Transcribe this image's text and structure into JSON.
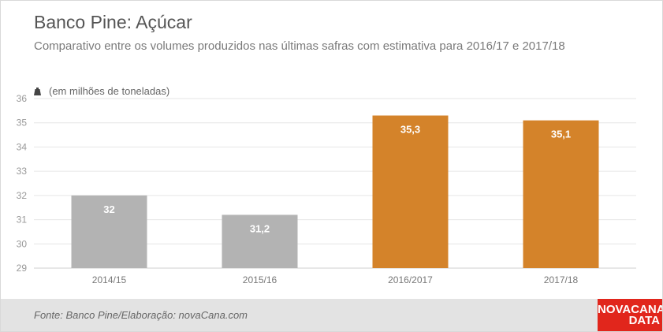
{
  "title": "Banco Pine: Açúcar",
  "subtitle": "Comparativo entre os volumes produzidos nas últimas safras com estimativa para 2016/17 e 2017/18",
  "unit_label": "(em milhões de toneladas)",
  "unit_icon": "weight-icon",
  "source": "Fonte: Banco Pine/Elaboração: novaCana.com",
  "logo": {
    "line1": "NOVACANA",
    "line2": "DATA"
  },
  "colors": {
    "actual": "#b3b3b3",
    "estimate": "#d4832a",
    "grid": "#e6e6e6",
    "logo": "#e1261c"
  },
  "chart_data": {
    "type": "bar",
    "categories": [
      "2014/15",
      "2015/16",
      "2016/2017",
      "2017/18"
    ],
    "values": [
      32,
      31.2,
      35.3,
      35.1
    ],
    "value_labels": [
      "32",
      "31,2",
      "35,3",
      "35,1"
    ],
    "bar_colors": [
      "#b3b3b3",
      "#b3b3b3",
      "#d4832a",
      "#d4832a"
    ],
    "ylim": [
      29,
      36
    ],
    "yticks": [
      29,
      30,
      31,
      32,
      33,
      34,
      35,
      36
    ],
    "grid": true,
    "xlabel": "",
    "ylabel": "(em milhões de toneladas)"
  }
}
